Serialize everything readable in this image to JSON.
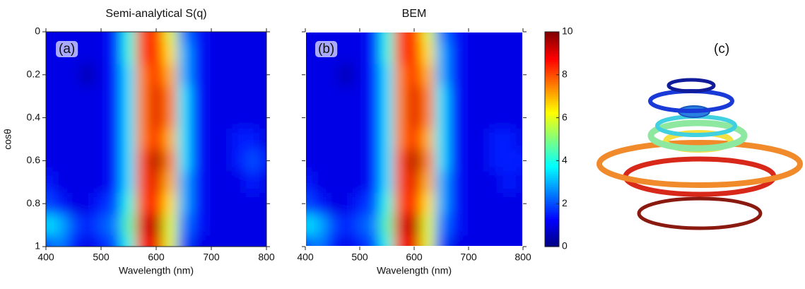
{
  "chart_data": [
    {
      "type": "heatmap",
      "title": "Semi-analytical S(q)",
      "annotation": "(a)",
      "xlabel": "Wavelength (nm)",
      "ylabel": "cosθ",
      "x": [
        400,
        425,
        450,
        475,
        500,
        525,
        550,
        575,
        600,
        625,
        650,
        675,
        700,
        725,
        750,
        775,
        800
      ],
      "y": [
        0,
        0.1,
        0.2,
        0.3,
        0.4,
        0.5,
        0.6,
        0.7,
        0.8,
        0.9,
        1
      ],
      "z": [
        [
          1,
          1,
          1,
          1,
          1,
          1.5,
          4,
          8,
          8.5,
          6,
          2.5,
          1.5,
          1,
          1,
          1,
          1,
          1
        ],
        [
          1,
          1,
          1,
          1,
          1,
          1.5,
          4,
          8,
          8.5,
          6.5,
          3,
          1.5,
          1,
          1,
          1,
          1,
          1
        ],
        [
          1,
          1,
          1,
          0.5,
          1,
          1.5,
          3.5,
          7.5,
          8.5,
          7,
          3,
          1.5,
          1,
          1,
          1,
          1,
          1
        ],
        [
          1,
          1,
          1,
          1,
          1,
          1.5,
          3.5,
          7.5,
          9,
          7.5,
          3.5,
          1.5,
          1,
          1,
          1,
          1,
          1
        ],
        [
          1,
          1,
          1,
          1,
          1,
          1.5,
          3.5,
          7.5,
          9,
          7.5,
          3.5,
          1.5,
          1,
          1,
          1,
          1,
          1
        ],
        [
          1,
          1,
          1,
          1,
          1,
          1.5,
          3.5,
          7.5,
          8.5,
          7,
          3.5,
          1.5,
          1,
          1,
          1.5,
          1.5,
          1
        ],
        [
          1,
          1,
          1,
          1,
          1,
          1.5,
          3.5,
          8,
          9.5,
          7.5,
          3.5,
          1.5,
          1,
          1,
          1.5,
          2,
          1.5
        ],
        [
          1.5,
          1,
          1,
          1,
          1,
          1.5,
          3.5,
          8,
          9,
          7,
          3,
          1.5,
          1,
          1,
          1,
          1.5,
          1
        ],
        [
          2,
          1.5,
          1,
          1,
          1.5,
          2,
          4,
          8,
          8.5,
          6.5,
          3,
          1.5,
          1,
          1,
          1,
          1,
          1
        ],
        [
          3.5,
          3,
          2,
          1.5,
          2,
          2.5,
          4.5,
          9,
          9.5,
          6,
          2.5,
          1.5,
          1,
          1,
          1,
          1,
          1
        ],
        [
          2,
          2.5,
          1.5,
          1,
          1.5,
          2,
          4,
          8.5,
          9,
          6,
          2,
          1,
          1,
          1,
          1,
          1,
          1
        ]
      ],
      "xlim": [
        400,
        800
      ],
      "xticks": [
        400,
        500,
        600,
        700,
        800
      ],
      "ylim": [
        1,
        0
      ],
      "yticks": [
        0,
        0.2,
        0.4,
        0.6,
        0.8,
        1
      ],
      "colorbar": {
        "lim": [
          0,
          10
        ],
        "ticks": [
          0,
          2,
          4,
          6,
          8,
          10
        ]
      }
    },
    {
      "type": "heatmap",
      "title": "BEM",
      "annotation": "(b)",
      "xlabel": "Wavelength (nm)",
      "x": [
        400,
        425,
        450,
        475,
        500,
        525,
        550,
        575,
        600,
        625,
        650,
        675,
        700,
        725,
        750,
        775,
        800
      ],
      "y": [
        0,
        0.1,
        0.2,
        0.3,
        0.4,
        0.5,
        0.6,
        0.7,
        0.8,
        0.9,
        1
      ],
      "z": [
        [
          1,
          1,
          1,
          1,
          1,
          1.5,
          4,
          8,
          8.5,
          6,
          2.5,
          1.5,
          1,
          1,
          1,
          1,
          1
        ],
        [
          1,
          1,
          1,
          1,
          1,
          1.5,
          4,
          8,
          8.5,
          6.5,
          3,
          1.5,
          1,
          1,
          1,
          1,
          1
        ],
        [
          1,
          1,
          1,
          0.5,
          1,
          1.5,
          3.5,
          7.5,
          8.5,
          7,
          3,
          1.5,
          1,
          1,
          1,
          1,
          1
        ],
        [
          1,
          1,
          1,
          1,
          1,
          1.5,
          3.5,
          7.5,
          9,
          7.5,
          3.5,
          1.5,
          1,
          1,
          1,
          1,
          1
        ],
        [
          1,
          1,
          1,
          1,
          1,
          1.5,
          3.5,
          7.5,
          9,
          7.5,
          3.5,
          1.5,
          1,
          1,
          1,
          1,
          1
        ],
        [
          1,
          1,
          1,
          1,
          1,
          1.5,
          3.5,
          7.5,
          8.5,
          7,
          3.5,
          1.5,
          1,
          1,
          1.5,
          1.5,
          1
        ],
        [
          1,
          1,
          1,
          1,
          1,
          1.5,
          3.5,
          8,
          9.5,
          7.5,
          3.5,
          1.5,
          1,
          1,
          1.5,
          1.5,
          1.5
        ],
        [
          1.5,
          1,
          1,
          1,
          1,
          1.5,
          3.5,
          8,
          9,
          7,
          3,
          1.5,
          1,
          1,
          1,
          1.5,
          1
        ],
        [
          2,
          1.5,
          1,
          1,
          1.5,
          2,
          4,
          8,
          8.5,
          6.5,
          3,
          1.5,
          1,
          1,
          1,
          1,
          1
        ],
        [
          3.5,
          3,
          2,
          1.5,
          2,
          2.5,
          4.5,
          9,
          9.5,
          6,
          2.5,
          1.5,
          1,
          1,
          1,
          1,
          1
        ],
        [
          2,
          2.5,
          1.5,
          1,
          1.5,
          2,
          4,
          8.5,
          9,
          6,
          2,
          1,
          1,
          1,
          1,
          1,
          1
        ]
      ],
      "xlim": [
        400,
        800
      ],
      "xticks": [
        400,
        500,
        600,
        700,
        800
      ],
      "ylim": [
        1,
        0
      ],
      "yticks": [
        0,
        0.2,
        0.4,
        0.6,
        0.8,
        1
      ]
    }
  ],
  "panel_c_label": "(c)"
}
